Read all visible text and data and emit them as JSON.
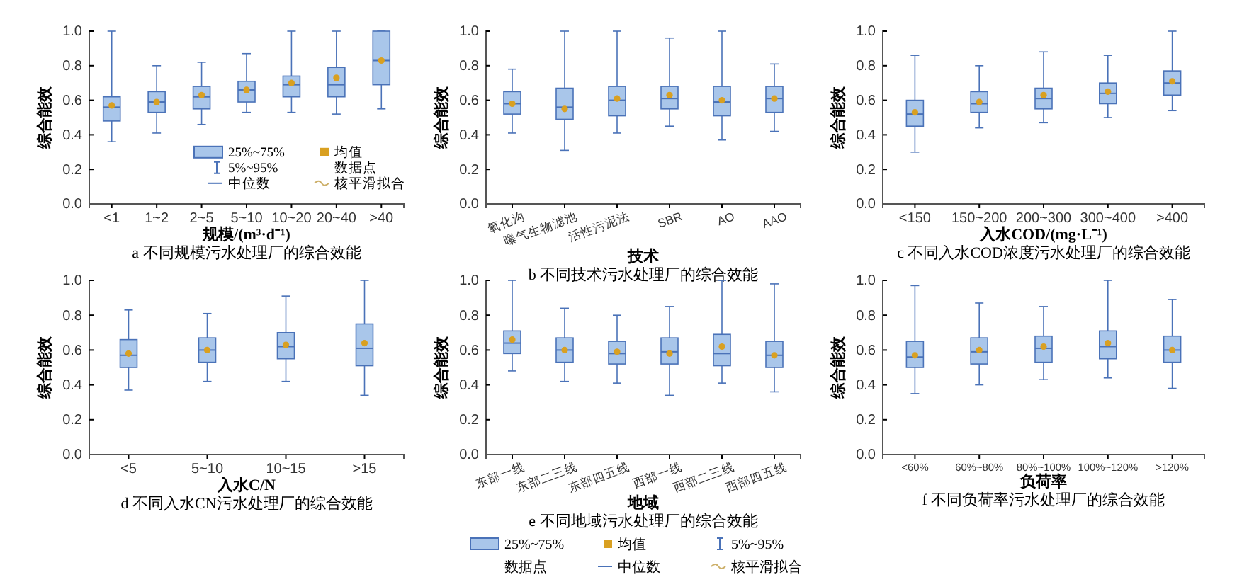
{
  "chart_data": [
    {
      "type": "box",
      "title": "a 不同规模污水处理厂的综合效能",
      "xlabel": "规模/(m³·d⁻¹)",
      "ylabel": "综合能效",
      "categories": [
        "<1",
        "1~2",
        "2~5",
        "5~10",
        "10~20",
        "20~40",
        ">40"
      ],
      "ylim": [
        0,
        1
      ],
      "yticks": [
        {
          "value": 0,
          "label": "0.0"
        },
        {
          "value": 0.2,
          "label": "0.2"
        },
        {
          "value": 0.4,
          "label": "0.4"
        },
        {
          "value": 0.6,
          "label": "0.6"
        },
        {
          "value": 0.8,
          "label": "0.8"
        },
        {
          "value": 1,
          "label": "1.0"
        }
      ],
      "annotations": [
        "25%~75%",
        "均值",
        "5%~95%",
        "数据点",
        "中位数",
        "核平滑拟合"
      ],
      "series": [
        {
          "color": "#a9c6ea",
          "boxes": [
            {
              "low": 0.36,
              "q1": 0.48,
              "median": 0.56,
              "q3": 0.62,
              "high": 1.0,
              "mean": 0.57
            },
            {
              "low": 0.41,
              "q1": 0.53,
              "median": 0.59,
              "q3": 0.65,
              "high": 0.8,
              "mean": 0.59
            },
            {
              "low": 0.46,
              "q1": 0.55,
              "median": 0.62,
              "q3": 0.68,
              "high": 0.82,
              "mean": 0.63
            },
            {
              "low": 0.53,
              "q1": 0.59,
              "median": 0.66,
              "q3": 0.71,
              "high": 0.87,
              "mean": 0.66
            },
            {
              "low": 0.53,
              "q1": 0.62,
              "median": 0.69,
              "q3": 0.74,
              "high": 1.0,
              "mean": 0.7
            },
            {
              "low": 0.52,
              "q1": 0.62,
              "median": 0.69,
              "q3": 0.79,
              "high": 1.0,
              "mean": 0.73
            },
            {
              "low": 0.55,
              "q1": 0.69,
              "median": 0.83,
              "q3": 1.0,
              "high": 1.0,
              "mean": 0.83
            }
          ]
        }
      ]
    },
    {
      "type": "box",
      "title": "b 不同技术污水处理厂的综合效能",
      "xlabel": "技术",
      "ylabel": "综合能效",
      "categories": [
        "氧化沟",
        "曝气生物滤池",
        "活性污泥法",
        "SBR",
        "AO",
        "AAO"
      ],
      "ylim": [
        0,
        1
      ],
      "yticks": [
        {
          "value": 0,
          "label": "0.0"
        },
        {
          "value": 0.2,
          "label": "0.2"
        },
        {
          "value": 0.4,
          "label": "0.4"
        },
        {
          "value": 0.6,
          "label": "0.6"
        },
        {
          "value": 0.8,
          "label": "0.8"
        },
        {
          "value": 1,
          "label": "1.0"
        }
      ],
      "series": [
        {
          "color": "#a9c6ea",
          "boxes": [
            {
              "low": 0.41,
              "q1": 0.52,
              "median": 0.58,
              "q3": 0.65,
              "high": 0.78,
              "mean": 0.58
            },
            {
              "low": 0.31,
              "q1": 0.49,
              "median": 0.56,
              "q3": 0.67,
              "high": 1.0,
              "mean": 0.55
            },
            {
              "low": 0.41,
              "q1": 0.51,
              "median": 0.6,
              "q3": 0.68,
              "high": 1.0,
              "mean": 0.61
            },
            {
              "low": 0.45,
              "q1": 0.55,
              "median": 0.61,
              "q3": 0.68,
              "high": 0.96,
              "mean": 0.63
            },
            {
              "low": 0.37,
              "q1": 0.51,
              "median": 0.59,
              "q3": 0.68,
              "high": 1.0,
              "mean": 0.6
            },
            {
              "low": 0.42,
              "q1": 0.53,
              "median": 0.61,
              "q3": 0.68,
              "high": 0.81,
              "mean": 0.61
            }
          ]
        }
      ]
    },
    {
      "type": "box",
      "title": "c 不同入水COD浓度污水处理厂的综合效能",
      "xlabel": "入水COD/(mg·L⁻¹)",
      "ylabel": "综合能效",
      "categories": [
        "<150",
        "150~200",
        "200~300",
        "300~400",
        ">400"
      ],
      "ylim": [
        0,
        1
      ],
      "yticks": [
        {
          "value": 0,
          "label": "0.0"
        },
        {
          "value": 0.2,
          "label": "0.2"
        },
        {
          "value": 0.4,
          "label": "0.4"
        },
        {
          "value": 0.6,
          "label": "0.6"
        },
        {
          "value": 0.8,
          "label": "0.8"
        },
        {
          "value": 1,
          "label": "1.0"
        }
      ],
      "series": [
        {
          "color": "#a9c6ea",
          "boxes": [
            {
              "low": 0.3,
              "q1": 0.45,
              "median": 0.52,
              "q3": 0.6,
              "high": 0.86,
              "mean": 0.53
            },
            {
              "low": 0.44,
              "q1": 0.53,
              "median": 0.58,
              "q3": 0.65,
              "high": 0.8,
              "mean": 0.59
            },
            {
              "low": 0.47,
              "q1": 0.55,
              "median": 0.61,
              "q3": 0.67,
              "high": 0.88,
              "mean": 0.63
            },
            {
              "low": 0.5,
              "q1": 0.58,
              "median": 0.64,
              "q3": 0.7,
              "high": 0.86,
              "mean": 0.65
            },
            {
              "low": 0.54,
              "q1": 0.63,
              "median": 0.7,
              "q3": 0.77,
              "high": 1.0,
              "mean": 0.71
            }
          ]
        }
      ]
    },
    {
      "type": "box",
      "title": "d 不同入水CN污水处理厂的综合效能",
      "xlabel": "入水C/N",
      "ylabel": "综合能效",
      "categories": [
        "<5",
        "5~10",
        "10~15",
        ">15"
      ],
      "ylim": [
        0,
        1
      ],
      "yticks": [
        {
          "value": 0,
          "label": "0.0"
        },
        {
          "value": 0.2,
          "label": "0.2"
        },
        {
          "value": 0.4,
          "label": "0.4"
        },
        {
          "value": 0.6,
          "label": "0.6"
        },
        {
          "value": 0.8,
          "label": "0.8"
        },
        {
          "value": 1,
          "label": "1.0"
        }
      ],
      "series": [
        {
          "color": "#a9c6ea",
          "boxes": [
            {
              "low": 0.37,
              "q1": 0.5,
              "median": 0.57,
              "q3": 0.66,
              "high": 0.83,
              "mean": 0.58
            },
            {
              "low": 0.42,
              "q1": 0.53,
              "median": 0.6,
              "q3": 0.67,
              "high": 0.81,
              "mean": 0.6
            },
            {
              "low": 0.42,
              "q1": 0.55,
              "median": 0.62,
              "q3": 0.7,
              "high": 0.91,
              "mean": 0.63
            },
            {
              "low": 0.34,
              "q1": 0.51,
              "median": 0.61,
              "q3": 0.75,
              "high": 1.0,
              "mean": 0.64
            }
          ]
        }
      ]
    },
    {
      "type": "box",
      "title": "e 不同地域污水处理厂的综合效能",
      "xlabel": "地域",
      "ylabel": "综合能效",
      "categories": [
        "东部一线",
        "东部二三线",
        "东部四五线",
        "西部一线",
        "西部二三线",
        "西部四五线"
      ],
      "ylim": [
        0,
        1
      ],
      "yticks": [
        {
          "value": 0,
          "label": "0.0"
        },
        {
          "value": 0.2,
          "label": "0.2"
        },
        {
          "value": 0.4,
          "label": "0.4"
        },
        {
          "value": 0.6,
          "label": "0.6"
        },
        {
          "value": 0.8,
          "label": "0.8"
        },
        {
          "value": 1,
          "label": "1.0"
        }
      ],
      "series": [
        {
          "color": "#a9c6ea",
          "boxes": [
            {
              "low": 0.48,
              "q1": 0.58,
              "median": 0.64,
              "q3": 0.71,
              "high": 1.0,
              "mean": 0.66
            },
            {
              "low": 0.42,
              "q1": 0.53,
              "median": 0.6,
              "q3": 0.67,
              "high": 0.84,
              "mean": 0.6
            },
            {
              "low": 0.41,
              "q1": 0.52,
              "median": 0.58,
              "q3": 0.65,
              "high": 0.8,
              "mean": 0.59
            },
            {
              "low": 0.34,
              "q1": 0.52,
              "median": 0.59,
              "q3": 0.67,
              "high": 0.85,
              "mean": 0.58
            },
            {
              "low": 0.41,
              "q1": 0.51,
              "median": 0.58,
              "q3": 0.69,
              "high": 1.0,
              "mean": 0.62
            },
            {
              "low": 0.36,
              "q1": 0.5,
              "median": 0.57,
              "q3": 0.65,
              "high": 0.98,
              "mean": 0.57
            }
          ]
        }
      ]
    },
    {
      "type": "box",
      "title": "f 不同负荷率污水处理厂的综合效能",
      "xlabel": "负荷率",
      "ylabel": "综合能效",
      "categories": [
        "<60%",
        "60%~80%",
        "80%~100%",
        "100%~120%",
        ">120%"
      ],
      "ylim": [
        0,
        1
      ],
      "yticks": [
        {
          "value": 0,
          "label": "0.0"
        },
        {
          "value": 0.2,
          "label": "0.2"
        },
        {
          "value": 0.4,
          "label": "0.4"
        },
        {
          "value": 0.6,
          "label": "0.6"
        },
        {
          "value": 0.8,
          "label": "0.8"
        },
        {
          "value": 1,
          "label": "1.0"
        }
      ],
      "series": [
        {
          "color": "#a9c6ea",
          "boxes": [
            {
              "low": 0.35,
              "q1": 0.5,
              "median": 0.56,
              "q3": 0.65,
              "high": 0.97,
              "mean": 0.57
            },
            {
              "low": 0.4,
              "q1": 0.52,
              "median": 0.59,
              "q3": 0.67,
              "high": 0.87,
              "mean": 0.6
            },
            {
              "low": 0.43,
              "q1": 0.53,
              "median": 0.61,
              "q3": 0.68,
              "high": 0.85,
              "mean": 0.62
            },
            {
              "low": 0.44,
              "q1": 0.55,
              "median": 0.62,
              "q3": 0.71,
              "high": 1.0,
              "mean": 0.64
            },
            {
              "low": 0.38,
              "q1": 0.53,
              "median": 0.6,
              "q3": 0.68,
              "high": 0.89,
              "mean": 0.6
            }
          ]
        }
      ]
    },
    {
      "type": "other",
      "annotations": [
        "25%~75%",
        "均值",
        "5%~95%",
        "数据点",
        "中位数",
        "核平滑拟合"
      ]
    }
  ]
}
